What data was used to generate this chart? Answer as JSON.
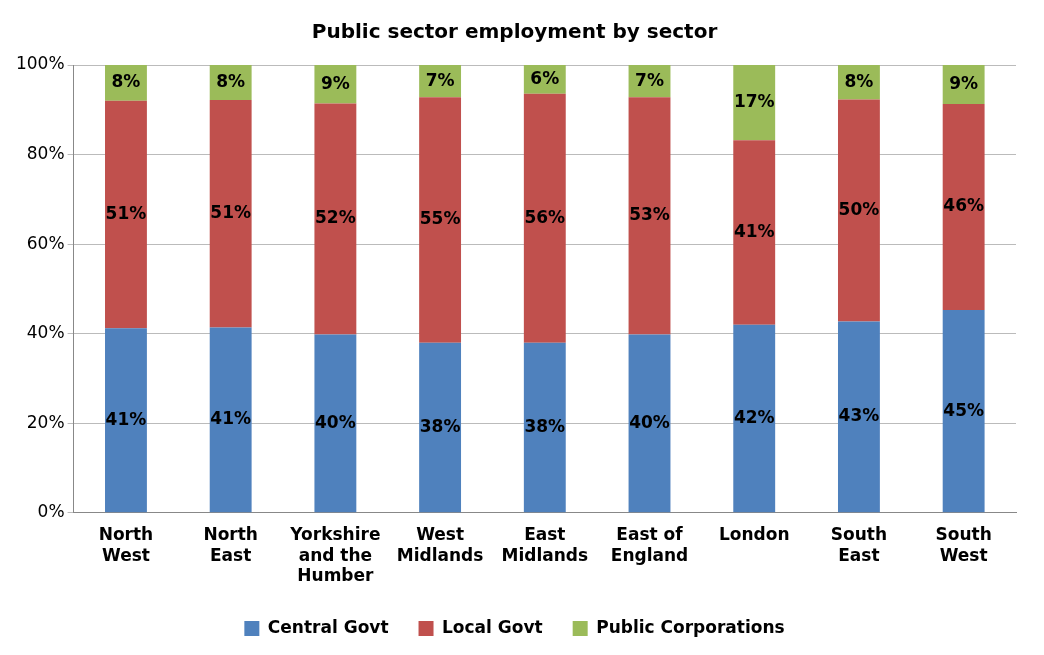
{
  "chart_data": {
    "type": "bar",
    "stacked": true,
    "title": "Public sector employment by sector",
    "categories": [
      "North West",
      "North East",
      "Yorkshire and the Humber",
      "West Midlands",
      "East Midlands",
      "East of England",
      "London",
      "South East",
      "South West"
    ],
    "series": [
      {
        "name": "Central Govt",
        "color": "#4f81bd",
        "values": [
          41.2,
          41.4,
          39.8,
          38.0,
          38.0,
          39.8,
          42.0,
          42.7,
          45.3
        ],
        "value_labels": [
          "41%",
          "41%",
          "40%",
          "38%",
          "38%",
          "40%",
          "42%",
          "43%",
          "45%"
        ]
      },
      {
        "name": "Local Govt",
        "color": "#c0504d",
        "values": [
          50.8,
          50.8,
          51.6,
          54.8,
          55.6,
          53.0,
          41.2,
          49.6,
          46.0
        ],
        "value_labels": [
          "51%",
          "51%",
          "52%",
          "55%",
          "56%",
          "53%",
          "41%",
          "50%",
          "46%"
        ]
      },
      {
        "name": "Public Corporations",
        "color": "#9bbb59",
        "values": [
          8.0,
          7.8,
          8.6,
          7.2,
          6.4,
          7.2,
          16.8,
          7.7,
          8.7
        ],
        "value_labels": [
          "8%",
          "8%",
          "9%",
          "7%",
          "6%",
          "7%",
          "17%",
          "8%",
          "9%"
        ]
      }
    ],
    "ylim": [
      0,
      100
    ],
    "yticks": [
      {
        "value": 0,
        "label": "0%"
      },
      {
        "value": 20,
        "label": "20%"
      },
      {
        "value": 40,
        "label": "40%"
      },
      {
        "value": 60,
        "label": "60%"
      },
      {
        "value": 80,
        "label": "80%"
      },
      {
        "value": 100,
        "label": "100%"
      }
    ],
    "grid": "y",
    "legend": "bottom"
  }
}
